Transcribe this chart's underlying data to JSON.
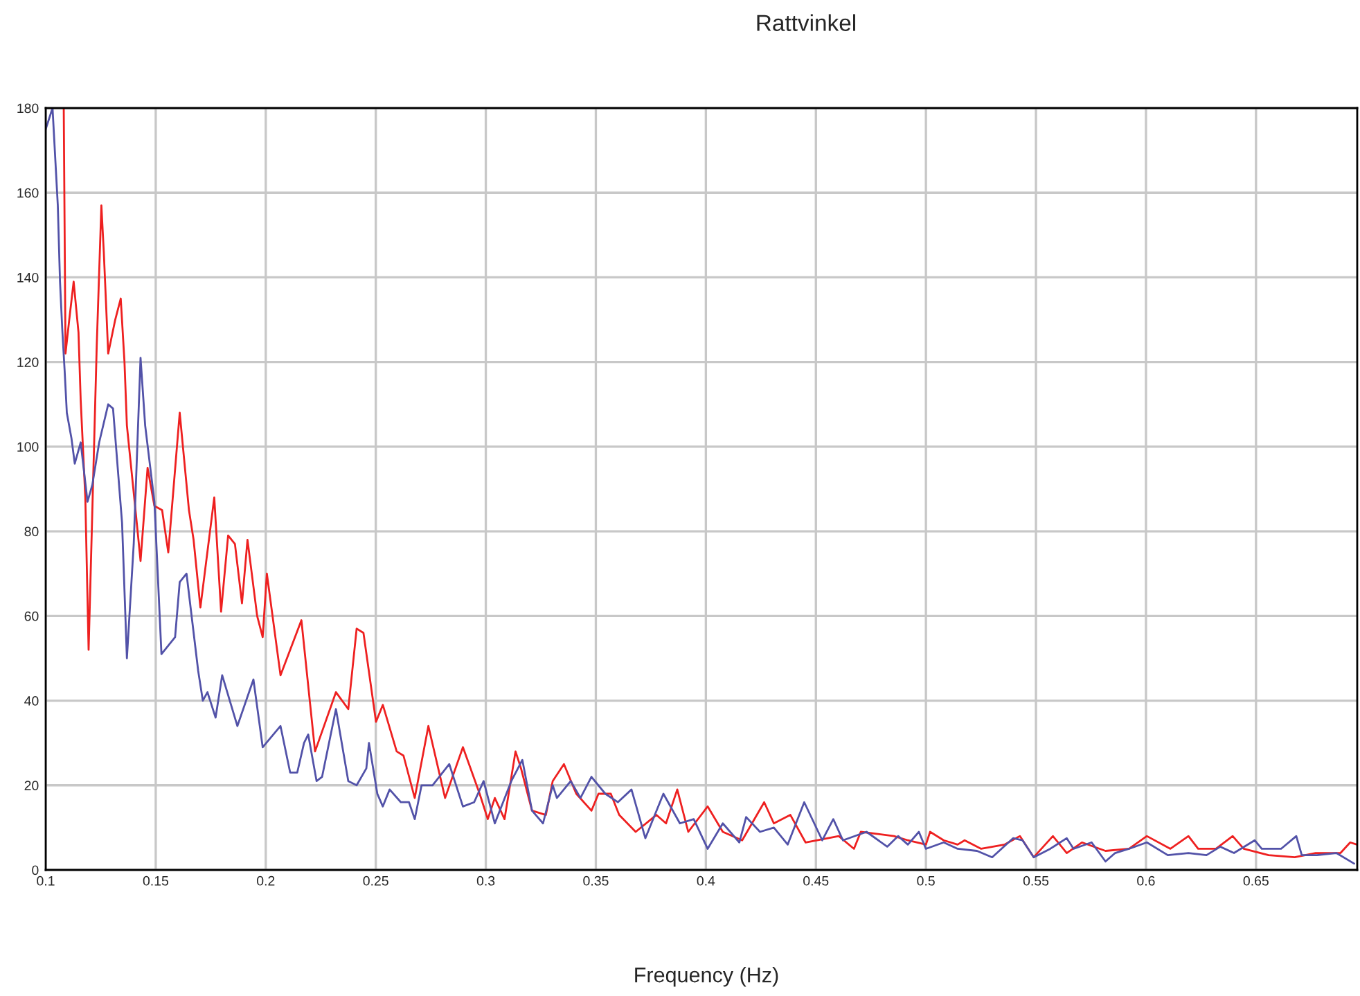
{
  "chart_data": {
    "type": "line",
    "title": "Rattvinkel",
    "xlabel": "Frequency (Hz)",
    "xlim": [
      0.1,
      0.696
    ],
    "xticks": [
      0.1,
      0.15,
      0.2,
      0.25,
      0.3,
      0.35,
      0.4,
      0.45,
      0.5,
      0.55,
      0.6,
      0.65
    ],
    "ylim": [
      0,
      180
    ],
    "yticks": [
      0,
      20,
      40,
      60,
      80,
      100,
      120,
      140,
      160,
      180
    ],
    "grid": true,
    "legend": false,
    "marker": "none",
    "line_style": "solid",
    "series": [
      {
        "color": "#ee2020",
        "x": [
          0.1082,
          0.109,
          0.1107,
          0.1127,
          0.1149,
          0.1159,
          0.118,
          0.1195,
          0.1232,
          0.1253,
          0.1264,
          0.1284,
          0.1316,
          0.1341,
          0.1358,
          0.1369,
          0.141,
          0.1431,
          0.1463,
          0.1494,
          0.1529,
          0.1557,
          0.1609,
          0.1651,
          0.1672,
          0.1703,
          0.1766,
          0.1797,
          0.1829,
          0.186,
          0.1892,
          0.1917,
          0.1961,
          0.1986,
          0.2005,
          0.2067,
          0.2162,
          0.2224,
          0.2319,
          0.2375,
          0.2413,
          0.2444,
          0.2501,
          0.2532,
          0.2595,
          0.2626,
          0.2677,
          0.2739,
          0.2815,
          0.2896,
          0.2972,
          0.3009,
          0.3041,
          0.3085,
          0.3135,
          0.316,
          0.321,
          0.3273,
          0.3304,
          0.3355,
          0.3411,
          0.348,
          0.3512,
          0.3568,
          0.3606,
          0.3681,
          0.3775,
          0.3819,
          0.387,
          0.392,
          0.4008,
          0.4077,
          0.4165,
          0.4265,
          0.4309,
          0.4384,
          0.4453,
          0.4604,
          0.4673,
          0.4704,
          0.4855,
          0.4918,
          0.5,
          0.5019,
          0.5081,
          0.5144,
          0.5176,
          0.5251,
          0.5358,
          0.5427,
          0.549,
          0.5577,
          0.564,
          0.5709,
          0.5816,
          0.5923,
          0.6004,
          0.6111,
          0.6193,
          0.6237,
          0.6318,
          0.6394,
          0.6444,
          0.6557,
          0.6676,
          0.6771,
          0.6884,
          0.6928,
          0.6959
        ],
        "values": [
          180,
          122,
          130,
          139,
          127,
          111,
          88,
          52,
          124,
          157,
          146,
          122,
          130,
          135,
          120,
          105,
          84,
          73,
          95,
          86,
          85,
          75,
          108,
          85,
          78,
          62,
          88,
          61,
          79,
          77,
          63,
          78,
          60,
          55,
          70,
          46,
          59,
          28,
          42,
          38,
          57,
          56,
          35,
          39,
          28,
          27,
          17,
          34,
          17,
          29,
          18,
          12,
          17,
          12,
          28,
          24,
          14,
          13,
          21,
          25,
          18,
          14,
          18,
          18,
          13,
          9,
          13,
          11,
          19,
          9,
          15,
          9,
          7,
          16,
          11,
          13,
          6.5,
          8,
          5,
          9,
          8,
          7,
          6,
          9,
          7,
          6,
          7,
          5,
          6,
          8,
          3,
          8,
          4,
          6.5,
          4.5,
          5,
          8,
          5,
          8,
          5,
          5,
          8,
          5,
          3.5,
          3,
          4,
          4,
          6.5,
          6
        ]
      },
      {
        "color": "#5252a8",
        "x": [
          0.1,
          0.1031,
          0.1055,
          0.1065,
          0.1075,
          0.1086,
          0.1096,
          0.1117,
          0.1132,
          0.1159,
          0.119,
          0.1212,
          0.1243,
          0.1284,
          0.1306,
          0.1347,
          0.1369,
          0.14,
          0.1431,
          0.1452,
          0.1473,
          0.1494,
          0.1526,
          0.1588,
          0.1609,
          0.164,
          0.1693,
          0.1714,
          0.1735,
          0.1772,
          0.1802,
          0.1871,
          0.1944,
          0.1986,
          0.2067,
          0.2111,
          0.2143,
          0.2174,
          0.2193,
          0.2231,
          0.2256,
          0.2319,
          0.2375,
          0.2413,
          0.2457,
          0.2469,
          0.2507,
          0.2532,
          0.2563,
          0.2614,
          0.2651,
          0.2677,
          0.2708,
          0.2758,
          0.2834,
          0.2896,
          0.2947,
          0.299,
          0.3041,
          0.3116,
          0.3166,
          0.321,
          0.326,
          0.3304,
          0.3323,
          0.3386,
          0.343,
          0.348,
          0.3543,
          0.36,
          0.3662,
          0.3725,
          0.3807,
          0.3882,
          0.3945,
          0.4008,
          0.4077,
          0.4152,
          0.4183,
          0.4246,
          0.4309,
          0.4372,
          0.4447,
          0.4529,
          0.4579,
          0.4623,
          0.473,
          0.4824,
          0.4874,
          0.4918,
          0.4968,
          0.5,
          0.5081,
          0.5144,
          0.5232,
          0.5301,
          0.5396,
          0.5439,
          0.549,
          0.5565,
          0.564,
          0.5671,
          0.5753,
          0.5816,
          0.586,
          0.5923,
          0.6004,
          0.6099,
          0.6193,
          0.6275,
          0.6338,
          0.64,
          0.6494,
          0.6526,
          0.6614,
          0.6683,
          0.6708,
          0.6777,
          0.6865,
          0.6946
        ],
        "values": [
          175,
          180,
          157,
          139,
          128,
          118,
          108,
          102,
          96,
          101,
          87,
          91,
          101,
          110,
          109,
          82,
          50,
          77,
          121,
          105,
          96,
          87,
          51,
          55,
          68,
          70,
          47,
          40,
          42,
          36,
          46,
          34,
          45,
          29,
          34,
          23,
          23,
          30,
          32,
          21,
          22,
          38,
          21,
          20,
          24,
          30,
          18,
          15,
          19,
          16,
          16,
          12,
          20,
          20,
          25,
          15,
          16,
          21,
          11,
          21,
          26,
          14,
          11,
          20,
          17,
          21,
          17,
          22,
          18,
          16,
          19,
          7.5,
          18,
          11,
          12,
          5,
          11,
          6.5,
          12.5,
          9,
          10,
          6,
          16,
          7,
          12,
          7,
          9,
          5.5,
          8,
          6,
          9,
          5,
          6.5,
          5,
          4.5,
          3,
          7.5,
          7,
          3,
          5,
          7.5,
          5,
          6.5,
          2,
          4,
          5,
          6.5,
          3.5,
          4,
          3.5,
          5.5,
          4,
          7,
          5,
          5,
          8,
          3.5,
          3.5,
          4,
          1.5
        ]
      }
    ]
  }
}
